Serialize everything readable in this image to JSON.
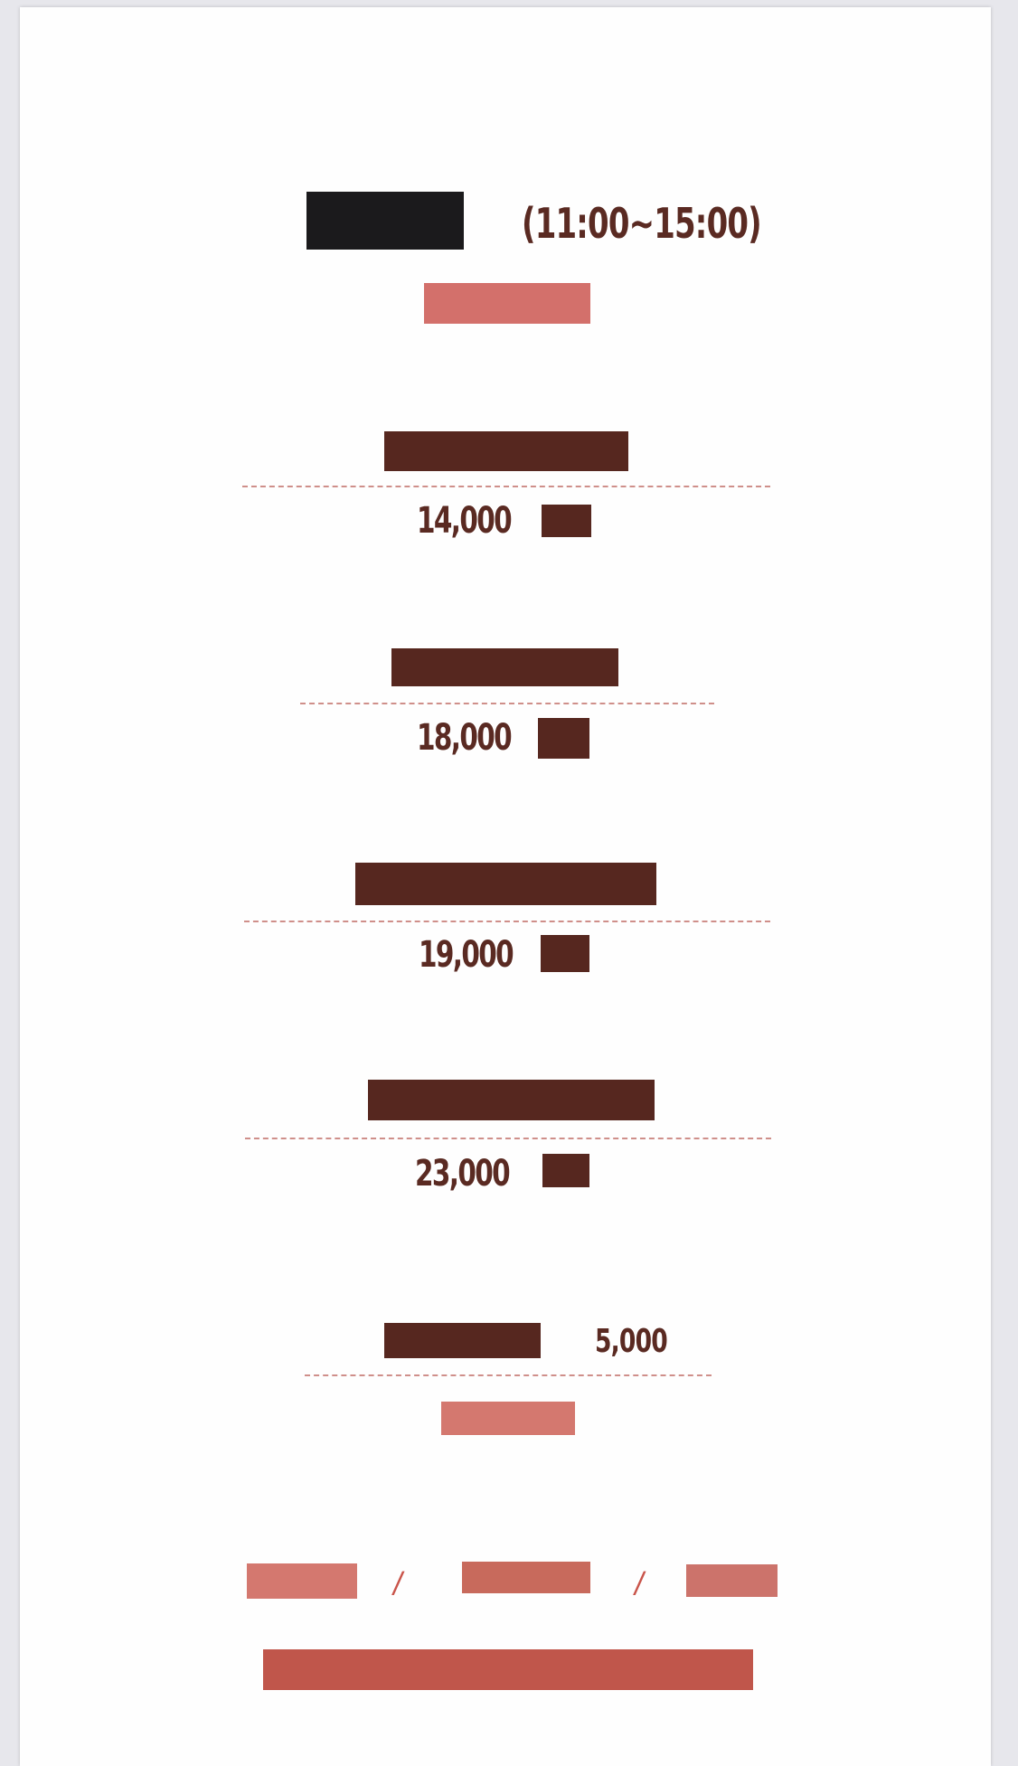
{
  "header": {
    "hours": "(11:00~15:00)"
  },
  "menu": [
    {
      "price": "14,000"
    },
    {
      "price": "18,000"
    },
    {
      "price": "19,000"
    },
    {
      "price": "23,000"
    }
  ],
  "extra": {
    "price": "5,000"
  },
  "footer": {
    "separator_1": "/",
    "separator_2": "/"
  },
  "colors": {
    "dark_brown": "#56271f",
    "salmon": "#d3706b",
    "red": "#c0564b",
    "black": "#1b1a1c"
  }
}
